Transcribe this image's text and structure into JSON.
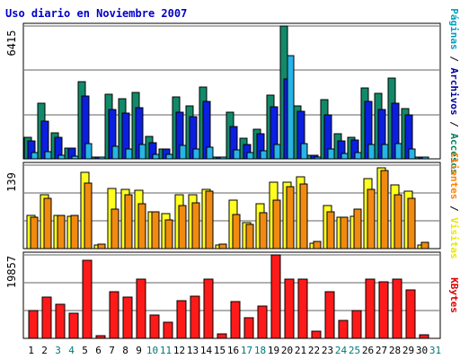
{
  "chart_data": {
    "title": "Uso diario en Noviembre 2007",
    "categories": [
      "1",
      "2",
      "3",
      "4",
      "5",
      "6",
      "7",
      "8",
      "9",
      "10",
      "11",
      "12",
      "13",
      "14",
      "15",
      "16",
      "17",
      "18",
      "19",
      "20",
      "21",
      "22",
      "23",
      "24",
      "25",
      "26",
      "27",
      "28",
      "29",
      "30",
      "31"
    ],
    "weekend_days": [
      "3",
      "4",
      "10",
      "11",
      "17",
      "18",
      "24",
      "25",
      "31"
    ],
    "weekend_color": "#007777",
    "weekday_color": "#000000",
    "panels": [
      {
        "type": "bar",
        "ymax_label": "6415",
        "ymax": 6415,
        "legend": [
          "Páginas",
          "Archivos",
          "Accesos"
        ],
        "legend_text": [
          "Páginas",
          " / ",
          "Archivos",
          " / ",
          "Accesos"
        ],
        "legend_colors": [
          "#00a0c0",
          "#000000",
          "#000099",
          "#000000",
          "#008060"
        ],
        "series": [
          {
            "name": "Accesos",
            "color": "#128a6a",
            "values": [
              1045,
              2668,
              1253,
              530,
              3729,
              68,
              3123,
              2912,
              3225,
              1083,
              489,
              2996,
              2560,
              3466,
              107,
              2264,
              1010,
              1427,
              3066,
              6415,
              2560,
              193,
              2854,
              1223,
              1045,
              3405,
              3165,
              3891,
              2422,
              107,
              0
            ]
          },
          {
            "name": "Archivos",
            "color": "#0b1fe0",
            "values": [
              849,
              1819,
              1030,
              500,
              3017,
              68,
              2396,
              2231,
              2455,
              798,
              489,
              2234,
              2046,
              2781,
              107,
              1564,
              700,
              1223,
              2529,
              3854,
              2276,
              193,
              2138,
              868,
              919,
              2761,
              2396,
              2676,
              2121,
              107,
              0
            ]
          },
          {
            "name": "Páginas",
            "color": "#27b4e6",
            "values": [
              297,
              327,
              178,
              120,
              735,
              51,
              593,
              489,
              676,
              222,
              237,
              637,
              467,
              549,
              34,
              422,
              297,
              387,
              697,
              4967,
              723,
              89,
              489,
              267,
              282,
              691,
              712,
              742,
              475,
              40,
              0
            ]
          }
        ]
      },
      {
        "type": "bar",
        "ymax_label": "139",
        "ymax": 139,
        "legend": [
          "Visitas",
          "Clientes"
        ],
        "legend_text": [
          "Clientes",
          " / ",
          "Visitas"
        ],
        "legend_colors": [
          "#ff8000",
          "#000000",
          "#e8e800"
        ],
        "series": [
          {
            "name": "Visitas",
            "color": "#ffff20",
            "values": [
              55,
              89,
              56,
              54,
              127,
              6,
              100,
              99,
              97,
              61,
              59,
              90,
              90,
              99,
              6,
              80,
              43,
              74,
              110,
              110,
              119,
              9,
              72,
              53,
              54,
              116,
              135,
              106,
              95,
              6,
              0
            ]
          },
          {
            "name": "Clientes",
            "color": "#f08a10",
            "values": [
              53,
              84,
              56,
              56,
              109,
              8,
              66,
              90,
              75,
              61,
              48,
              71,
              76,
              96,
              8,
              57,
              41,
              60,
              81,
              103,
              108,
              12,
              62,
              53,
              66,
              98,
              130,
              90,
              84,
              10,
              0
            ]
          }
        ]
      },
      {
        "type": "bar",
        "ymax_label": "19857",
        "ymax": 19857,
        "legend": [
          "KBytes"
        ],
        "legend_text": [
          "KBytes"
        ],
        "legend_colors": [
          "#dd0000"
        ],
        "series": [
          {
            "name": "KBytes",
            "color": "#ff1a1a",
            "values": [
              6532,
              9889,
              8101,
              5959,
              18620,
              698,
              11039,
              9889,
              14043,
              5524,
              3870,
              9051,
              9946,
              14043,
              1130,
              8662,
              4810,
              7758,
              19857,
              14043,
              14193,
              1700,
              11039,
              4180,
              6532,
              14043,
              13490,
              13999,
              11525,
              938,
              0
            ]
          }
        ]
      }
    ]
  }
}
